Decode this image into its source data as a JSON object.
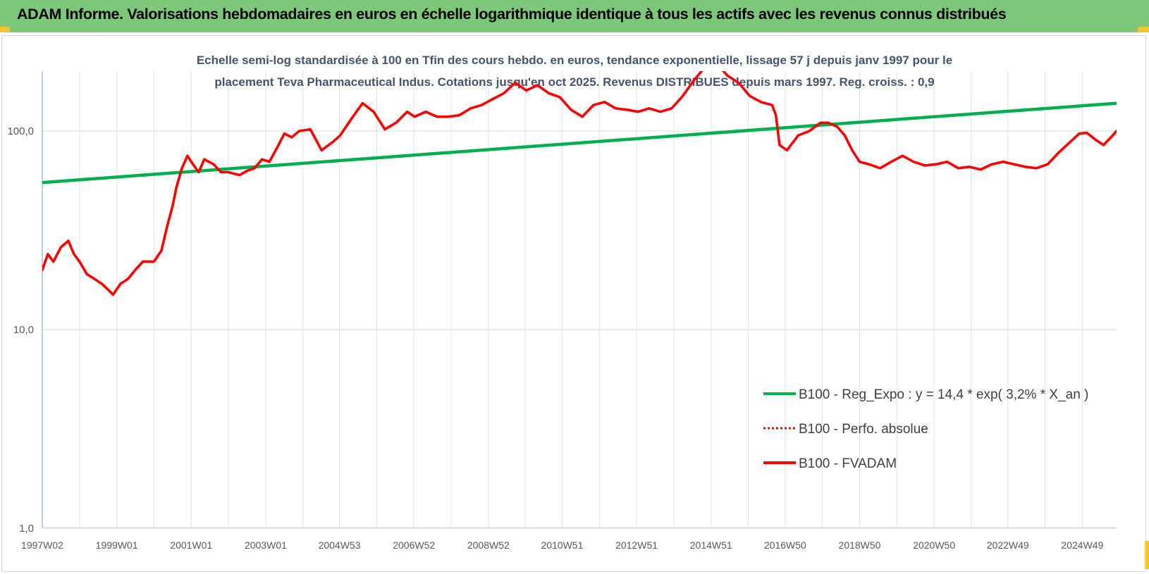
{
  "header": {
    "title": "ADAM Informe. Valorisations hebdomadaires en euros en échelle logarithmique identique à tous les actifs avec les revenus connus distribués"
  },
  "chart_data": {
    "type": "line",
    "title_lines": [
      "Echelle semi-log standardisée à 100 en Tfin des cours hebdo. en euros, tendance exponentielle, lissage 57 j depuis janv 1997 pour le",
      "placement Teva Pharmaceutical Indus. Cotations jusqu'en oct 2025. Revenus DISTRIBUES depuis mars 1997. Reg. croiss. : 0,9"
    ],
    "y_scale": "log",
    "ylim": [
      1,
      200
    ],
    "y_ticks": [
      {
        "value": 1,
        "label": "1,0"
      },
      {
        "value": 10,
        "label": "10,0"
      },
      {
        "value": 100,
        "label": "100,0"
      }
    ],
    "xlim": [
      1997.0,
      2025.85
    ],
    "x_ticks": [
      {
        "x": 1997.0,
        "label": "1997W02"
      },
      {
        "x": 1999.0,
        "label": "1999W01"
      },
      {
        "x": 2001.0,
        "label": "2001W01"
      },
      {
        "x": 2003.0,
        "label": "2003W01"
      },
      {
        "x": 2004.98,
        "label": "2004W53"
      },
      {
        "x": 2006.98,
        "label": "2006W52"
      },
      {
        "x": 2008.98,
        "label": "2008W52"
      },
      {
        "x": 2010.96,
        "label": "2010W51"
      },
      {
        "x": 2012.96,
        "label": "2012W51"
      },
      {
        "x": 2014.96,
        "label": "2014W51"
      },
      {
        "x": 2016.95,
        "label": "2016W50"
      },
      {
        "x": 2018.95,
        "label": "2018W50"
      },
      {
        "x": 2020.95,
        "label": "2020W50"
      },
      {
        "x": 2022.93,
        "label": "2022W49"
      },
      {
        "x": 2024.93,
        "label": "2024W49"
      }
    ],
    "grid": "vertical-and-horizontal",
    "legend_position": "bottom-right",
    "series": [
      {
        "name": "B100 - Reg_Expo : y = 14,4 * exp( 3,2% *  X_an )",
        "color": "#00b050",
        "style": "solid",
        "x": [
          1997.0,
          2025.85
        ],
        "values": [
          55,
          138
        ]
      },
      {
        "name": "B100 - Perfo. absolue",
        "color": "#ff0000",
        "style": "dotted",
        "x": [],
        "values": []
      },
      {
        "name": "B100 - FVADAM",
        "color": "#ff0000",
        "style": "solid",
        "x": [
          1997.0,
          1997.15,
          1997.3,
          1997.5,
          1997.7,
          1997.85,
          1998.0,
          1998.2,
          1998.4,
          1998.6,
          1998.75,
          1998.9,
          1999.1,
          1999.3,
          1999.5,
          1999.7,
          1999.9,
          2000.0,
          2000.2,
          2000.35,
          2000.5,
          2000.6,
          2000.75,
          2000.9,
          2001.0,
          2001.2,
          2001.35,
          2001.6,
          2001.8,
          2002.0,
          2002.3,
          2002.5,
          2002.7,
          2002.9,
          2003.1,
          2003.3,
          2003.5,
          2003.7,
          2003.9,
          2004.2,
          2004.5,
          2004.8,
          2005.0,
          2005.3,
          2005.6,
          2005.9,
          2006.2,
          2006.5,
          2006.8,
          2007.0,
          2007.3,
          2007.6,
          2007.9,
          2008.2,
          2008.5,
          2008.8,
          2009.1,
          2009.4,
          2009.7,
          2010.0,
          2010.3,
          2010.6,
          2010.9,
          2011.2,
          2011.5,
          2011.8,
          2012.1,
          2012.4,
          2012.7,
          2013.0,
          2013.3,
          2013.6,
          2013.9,
          2014.2,
          2014.5,
          2014.8,
          2015.1,
          2015.4,
          2015.7,
          2016.0,
          2016.3,
          2016.6,
          2016.7,
          2016.8,
          2017.0,
          2017.3,
          2017.6,
          2017.9,
          2018.1,
          2018.35,
          2018.55,
          2018.75,
          2018.95,
          2019.2,
          2019.5,
          2019.8,
          2020.1,
          2020.4,
          2020.7,
          2021.0,
          2021.3,
          2021.6,
          2021.9,
          2022.2,
          2022.5,
          2022.8,
          2023.1,
          2023.4,
          2023.7,
          2024.0,
          2024.3,
          2024.6,
          2024.85,
          2025.05,
          2025.3,
          2025.5,
          2025.7,
          2025.85
        ],
        "values": [
          20,
          24,
          22,
          26,
          28,
          24,
          22,
          19,
          18,
          17,
          16,
          15,
          17,
          18,
          20,
          22,
          22,
          22,
          25,
          33,
          42,
          52,
          65,
          75,
          70,
          62,
          72,
          68,
          62,
          62,
          60,
          63,
          65,
          72,
          70,
          82,
          97,
          93,
          100,
          102,
          80,
          88,
          95,
          115,
          138,
          125,
          102,
          110,
          125,
          118,
          125,
          118,
          118,
          120,
          130,
          135,
          145,
          155,
          175,
          160,
          170,
          155,
          148,
          128,
          118,
          135,
          140,
          130,
          128,
          125,
          130,
          125,
          130,
          150,
          180,
          210,
          220,
          190,
          175,
          150,
          140,
          135,
          120,
          85,
          80,
          95,
          100,
          110,
          110,
          105,
          95,
          80,
          70,
          68,
          65,
          70,
          75,
          70,
          67,
          68,
          70,
          65,
          66,
          64,
          68,
          70,
          68,
          66,
          65,
          68,
          78,
          88,
          97,
          98,
          90,
          85,
          93,
          100
        ]
      }
    ]
  }
}
